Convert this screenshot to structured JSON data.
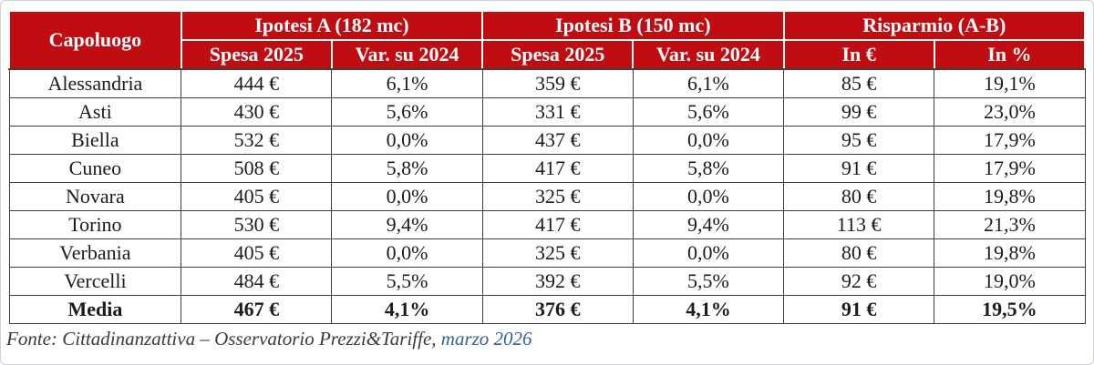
{
  "colors": {
    "header_bg": "#c00d12",
    "header_text": "#ffffff",
    "grid_border": "#3f3f3f",
    "body_text": "#1c1c1c",
    "source_text": "#3a3a3a",
    "source_link": "#366092"
  },
  "table": {
    "header": {
      "col_city": "Capoluogo",
      "groups": [
        {
          "label": "Ipotesi A (182 mc)",
          "cols": [
            "Spesa 2025",
            "Var. su 2024"
          ]
        },
        {
          "label": "Ipotesi B (150 mc)",
          "cols": [
            "Spesa 2025",
            "Var. su 2024"
          ]
        },
        {
          "label": "Risparmio (A-B)",
          "cols": [
            "In €",
            "In %"
          ]
        }
      ]
    },
    "rows": [
      {
        "city": "Alessandria",
        "values": [
          "444 €",
          "6,1%",
          "359 €",
          "6,1%",
          "85 €",
          "19,1%"
        ],
        "bold": false
      },
      {
        "city": "Asti",
        "values": [
          "430 €",
          "5,6%",
          "331 €",
          "5,6%",
          "99 €",
          "23,0%"
        ],
        "bold": false
      },
      {
        "city": "Biella",
        "values": [
          "532 €",
          "0,0%",
          "437 €",
          "0,0%",
          "95 €",
          "17,9%"
        ],
        "bold": false
      },
      {
        "city": "Cuneo",
        "values": [
          "508 €",
          "5,8%",
          "417 €",
          "5,8%",
          "91 €",
          "17,9%"
        ],
        "bold": false
      },
      {
        "city": "Novara",
        "values": [
          "405 €",
          "0,0%",
          "325 €",
          "0,0%",
          "80 €",
          "19,8%"
        ],
        "bold": false
      },
      {
        "city": "Torino",
        "values": [
          "530 €",
          "9,4%",
          "417 €",
          "9,4%",
          "113 €",
          "21,3%"
        ],
        "bold": false
      },
      {
        "city": "Verbania",
        "values": [
          "405 €",
          "0,0%",
          "325 €",
          "0,0%",
          "80 €",
          "19,8%"
        ],
        "bold": false
      },
      {
        "city": "Vercelli",
        "values": [
          "484 €",
          "5,5%",
          "392 €",
          "5,5%",
          "92 €",
          "19,0%"
        ],
        "bold": false
      },
      {
        "city": "Media",
        "values": [
          "467 €",
          "4,1%",
          "376 €",
          "4,1%",
          "91 €",
          "19,5%"
        ],
        "bold": true
      }
    ]
  },
  "footer": {
    "source_text": "Fonte: Cittadinanzattiva – Osservatorio Prezzi&Tariffe,",
    "source_link": " marzo 2026"
  },
  "chart_data": {
    "type": "table",
    "title": "",
    "column_groups": [
      "",
      "Ipotesi A (182 mc)",
      "Ipotesi A (182 mc)",
      "Ipotesi B (150 mc)",
      "Ipotesi B (150 mc)",
      "Risparmio (A-B)",
      "Risparmio (A-B)"
    ],
    "columns": [
      "Capoluogo",
      "Spesa 2025",
      "Var. su 2024",
      "Spesa 2025",
      "Var. su 2024",
      "In €",
      "In %"
    ],
    "rows": [
      [
        "Alessandria",
        "444 €",
        "6,1%",
        "359 €",
        "6,1%",
        "85 €",
        "19,1%"
      ],
      [
        "Asti",
        "430 €",
        "5,6%",
        "331 €",
        "5,6%",
        "99 €",
        "23,0%"
      ],
      [
        "Biella",
        "532 €",
        "0,0%",
        "437 €",
        "0,0%",
        "95 €",
        "17,9%"
      ],
      [
        "Cuneo",
        "508 €",
        "5,8%",
        "417 €",
        "5,8%",
        "91 €",
        "17,9%"
      ],
      [
        "Novara",
        "405 €",
        "0,0%",
        "325 €",
        "0,0%",
        "80 €",
        "19,8%"
      ],
      [
        "Torino",
        "530 €",
        "9,4%",
        "417 €",
        "9,4%",
        "113 €",
        "21,3%"
      ],
      [
        "Verbania",
        "405 €",
        "0,0%",
        "325 €",
        "0,0%",
        "80 €",
        "19,8%"
      ],
      [
        "Vercelli",
        "484 €",
        "5,5%",
        "392 €",
        "5,5%",
        "92 €",
        "19,0%"
      ],
      [
        "Media",
        "467 €",
        "4,1%",
        "376 €",
        "4,1%",
        "91 €",
        "19,5%"
      ]
    ],
    "source": "Fonte: Cittadinanzattiva – Osservatorio Prezzi&Tariffe, marzo 2026"
  }
}
